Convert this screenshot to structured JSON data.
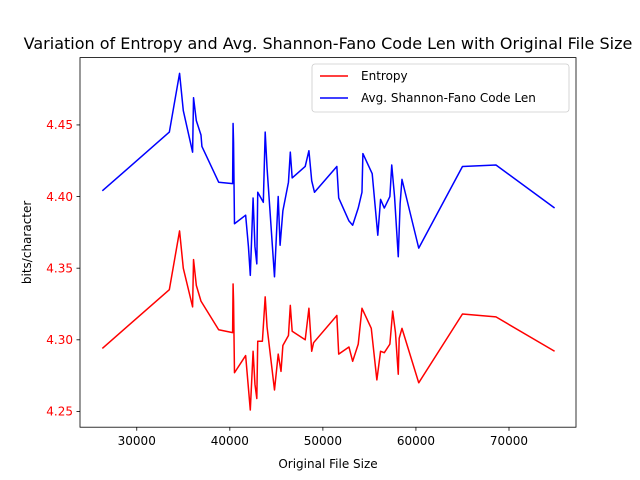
{
  "chart_data": {
    "type": "line",
    "title": "Variation of Entropy and Avg. Shannon-Fano Code Len with Original File Size",
    "xlabel": "Original File Size",
    "ylabel": "bits/character",
    "xlim": [
      23900,
      77200
    ],
    "ylim": [
      4.239,
      4.497
    ],
    "x_ticks": [
      30000,
      40000,
      50000,
      60000,
      70000
    ],
    "x_tick_labels": [
      "30000",
      "40000",
      "50000",
      "60000",
      "70000"
    ],
    "y_ticks": [
      4.25,
      4.3,
      4.35,
      4.4,
      4.45
    ],
    "y_tick_labels": [
      "4.25",
      "4.30",
      "4.35",
      "4.40",
      "4.45"
    ],
    "y_tick_color": "#ff0000",
    "grid": false,
    "legend_position": "top-right",
    "series": [
      {
        "name": "Entropy",
        "color": "#ff0000",
        "points": [
          [
            26300,
            4.294
          ],
          [
            33500,
            4.335
          ],
          [
            34600,
            4.376
          ],
          [
            35000,
            4.35
          ],
          [
            36000,
            4.323
          ],
          [
            36100,
            4.356
          ],
          [
            36400,
            4.338
          ],
          [
            36900,
            4.327
          ],
          [
            38800,
            4.307
          ],
          [
            40300,
            4.305
          ],
          [
            40350,
            4.339
          ],
          [
            40400,
            4.327
          ],
          [
            40500,
            4.277
          ],
          [
            41700,
            4.289
          ],
          [
            42200,
            4.251
          ],
          [
            42500,
            4.292
          ],
          [
            42700,
            4.269
          ],
          [
            42900,
            4.259
          ],
          [
            43000,
            4.299
          ],
          [
            43500,
            4.299
          ],
          [
            43800,
            4.33
          ],
          [
            44000,
            4.309
          ],
          [
            44800,
            4.265
          ],
          [
            45200,
            4.29
          ],
          [
            45500,
            4.278
          ],
          [
            45700,
            4.296
          ],
          [
            46300,
            4.303
          ],
          [
            46500,
            4.324
          ],
          [
            46700,
            4.306
          ],
          [
            48100,
            4.3
          ],
          [
            48500,
            4.322
          ],
          [
            48800,
            4.292
          ],
          [
            49000,
            4.298
          ],
          [
            51500,
            4.317
          ],
          [
            51700,
            4.29
          ],
          [
            52800,
            4.295
          ],
          [
            53200,
            4.285
          ],
          [
            53800,
            4.297
          ],
          [
            54200,
            4.322
          ],
          [
            55200,
            4.308
          ],
          [
            55800,
            4.272
          ],
          [
            56200,
            4.292
          ],
          [
            56600,
            4.291
          ],
          [
            57200,
            4.297
          ],
          [
            57500,
            4.32
          ],
          [
            57800,
            4.305
          ],
          [
            58100,
            4.276
          ],
          [
            58200,
            4.301
          ],
          [
            58500,
            4.308
          ],
          [
            60300,
            4.27
          ],
          [
            65000,
            4.318
          ],
          [
            68600,
            4.316
          ],
          [
            74900,
            4.292
          ]
        ]
      },
      {
        "name": "Avg. Shannon-Fano Code Len",
        "color": "#0000ff",
        "points": [
          [
            26300,
            4.404
          ],
          [
            33500,
            4.445
          ],
          [
            34600,
            4.486
          ],
          [
            35000,
            4.46
          ],
          [
            36000,
            4.431
          ],
          [
            36100,
            4.469
          ],
          [
            36400,
            4.453
          ],
          [
            36900,
            4.443
          ],
          [
            37000,
            4.435
          ],
          [
            38800,
            4.41
          ],
          [
            40300,
            4.409
          ],
          [
            40350,
            4.451
          ],
          [
            40400,
            4.438
          ],
          [
            40500,
            4.381
          ],
          [
            41700,
            4.387
          ],
          [
            42000,
            4.365
          ],
          [
            42200,
            4.345
          ],
          [
            42500,
            4.399
          ],
          [
            42700,
            4.365
          ],
          [
            42900,
            4.353
          ],
          [
            43000,
            4.403
          ],
          [
            43600,
            4.396
          ],
          [
            43800,
            4.445
          ],
          [
            44000,
            4.42
          ],
          [
            44800,
            4.344
          ],
          [
            45200,
            4.4
          ],
          [
            45400,
            4.366
          ],
          [
            45700,
            4.39
          ],
          [
            46300,
            4.41
          ],
          [
            46500,
            4.431
          ],
          [
            46700,
            4.413
          ],
          [
            48100,
            4.421
          ],
          [
            48500,
            4.432
          ],
          [
            48800,
            4.411
          ],
          [
            49100,
            4.403
          ],
          [
            51500,
            4.421
          ],
          [
            51700,
            4.399
          ],
          [
            52800,
            4.383
          ],
          [
            53200,
            4.38
          ],
          [
            53800,
            4.392
          ],
          [
            54200,
            4.403
          ],
          [
            54300,
            4.43
          ],
          [
            55300,
            4.416
          ],
          [
            55900,
            4.373
          ],
          [
            56200,
            4.398
          ],
          [
            56600,
            4.392
          ],
          [
            57200,
            4.4
          ],
          [
            57400,
            4.422
          ],
          [
            57700,
            4.4
          ],
          [
            58100,
            4.358
          ],
          [
            58300,
            4.395
          ],
          [
            58500,
            4.412
          ],
          [
            60300,
            4.364
          ],
          [
            65000,
            4.421
          ],
          [
            68600,
            4.422
          ],
          [
            74900,
            4.392
          ]
        ]
      }
    ]
  }
}
